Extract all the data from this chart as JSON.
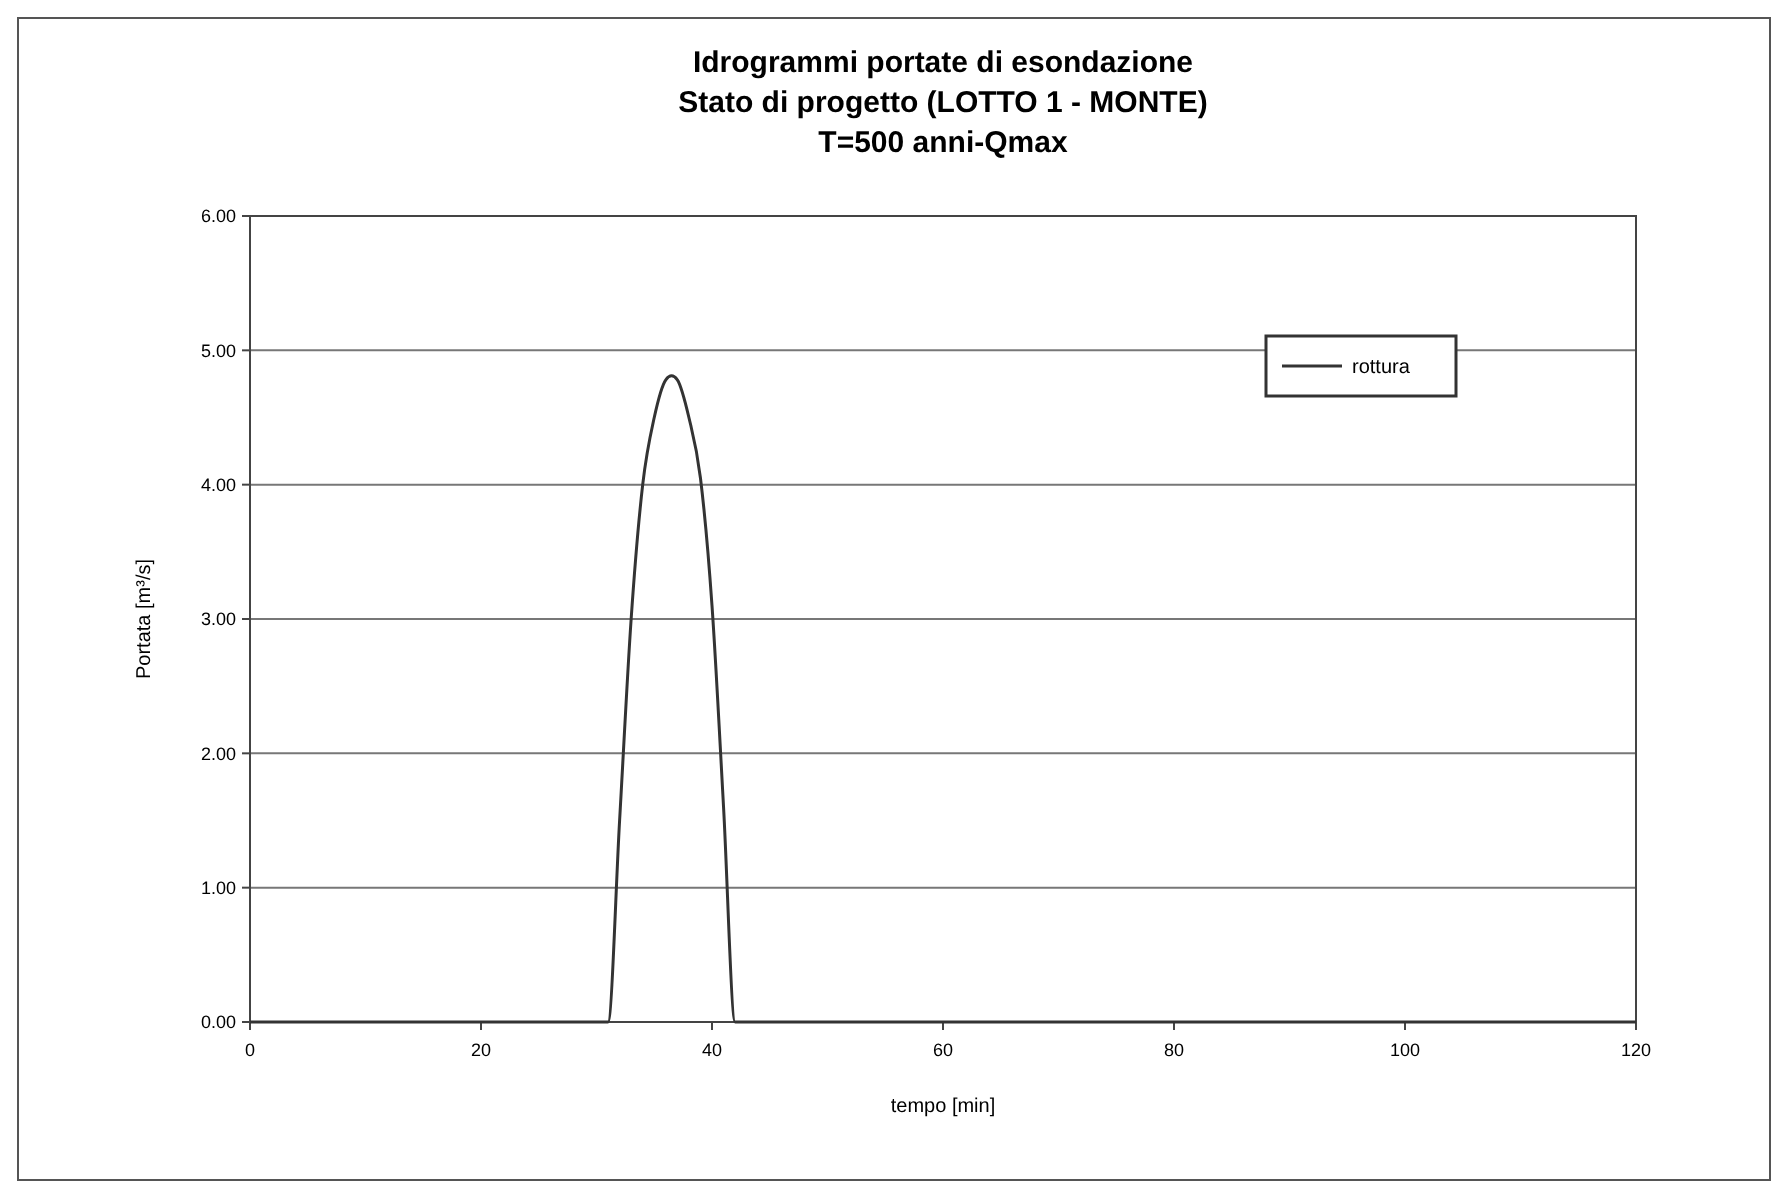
{
  "chart_data": {
    "type": "line",
    "title": "Idrogrammi portate di esondazione\nStato di progetto (LOTTO 1 - MONTE)\nT=500 anni-Qmax",
    "xlabel": "tempo [min]",
    "ylabel": "Portata [m³/s]",
    "x": [
      0,
      31,
      32,
      33,
      34,
      35,
      36,
      36.5,
      37,
      38,
      39,
      40,
      41,
      42,
      120
    ],
    "series": [
      {
        "name": "rottura",
        "color": "#333333",
        "values": [
          0,
          0,
          1.5,
          3,
          4,
          4.5,
          4.78,
          4.81,
          4.78,
          4.5,
          4.05,
          3.1,
          1.6,
          0,
          0
        ]
      }
    ],
    "xlim": [
      0,
      120
    ],
    "xticks": [
      0,
      20,
      40,
      60,
      80,
      100,
      120
    ],
    "ylim": [
      0,
      6
    ],
    "yticks": [
      {
        "value": 0,
        "label": "0.00"
      },
      {
        "value": 1,
        "label": "1.00"
      },
      {
        "value": 2,
        "label": "2.00"
      },
      {
        "value": 3,
        "label": "3.00"
      },
      {
        "value": 4,
        "label": "4.00"
      },
      {
        "value": 5,
        "label": "5.00"
      },
      {
        "value": 6,
        "label": "6.00"
      }
    ],
    "grid": "y",
    "legend": "right",
    "marker": "none",
    "line_style": "solid"
  }
}
